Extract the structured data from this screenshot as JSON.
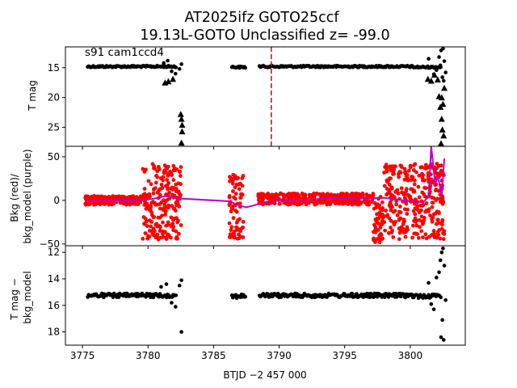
{
  "title_line1": "AT2025ifz  GOTO25ccf",
  "title_line2": "19.13L-GOTO Unclassified z= -99.0",
  "annotation": "s91 cam1ccd4",
  "x_label": "BTJD −2 457 000",
  "colors": {
    "points": "#000000",
    "bkg": "#ff0000",
    "bkg_model": "#c000c0",
    "marker_line": "#dd0000"
  },
  "chart_data": [
    {
      "type": "scatter",
      "panel": "top",
      "ylabel": "T mag",
      "y_inverted": true,
      "xlim": [
        3773.7,
        3804.2
      ],
      "ylim": [
        28.2,
        11.5
      ],
      "yticks": [
        15,
        20,
        25
      ],
      "vline_x": 3789.4,
      "series": [
        {
          "kind": "band",
          "segments": [
            [
              3775.4,
              3782.2,
              14.8
            ],
            [
              3786.4,
              3787.5,
              14.9
            ],
            [
              3788.5,
              3800.2,
              14.8
            ],
            [
              3800.2,
              3802.4,
              14.9
            ]
          ]
        },
        {
          "kind": "points",
          "x": [
            3781.2,
            3781.5,
            3781.8,
            3782.1,
            3782.4,
            3782.55,
            3801.4,
            3801.6,
            3801.8,
            3802.0,
            3802.2,
            3802.35,
            3802.5,
            3802.6,
            3802.7,
            3802.45,
            3802.3,
            3802.55
          ],
          "y": [
            14.2,
            13.8,
            15.6,
            16.0,
            15.2,
            14.4,
            13.5,
            14.9,
            16.1,
            15.4,
            13.2,
            12.1,
            11.8,
            13.9,
            15.8,
            16.6,
            14.6,
            17.2
          ]
        },
        {
          "kind": "triangles",
          "x": [
            3781.3,
            3781.55,
            3781.9,
            3782.5,
            3782.55,
            3782.6,
            3782.6,
            3782.55,
            3801.35,
            3801.6,
            3801.85,
            3802.1,
            3802.2,
            3802.3,
            3802.4,
            3802.45,
            3802.55,
            3802.35,
            3802.5,
            3802.6,
            3802.4
          ],
          "y": [
            17.5,
            17.3,
            16.9,
            22.8,
            23.6,
            24.6,
            25.7,
            27.6,
            16.9,
            17.2,
            16.2,
            17.0,
            19.8,
            21.6,
            23.6,
            25.4,
            26.4,
            27.7,
            21.1,
            18.4,
            20.0
          ]
        }
      ]
    },
    {
      "type": "line",
      "panel": "middle",
      "ylabel": "Bkg (red)/\nbkg_model (purple)",
      "xlim": [
        3773.7,
        3804.2
      ],
      "ylim": [
        -52,
        62
      ],
      "yticks": [
        -50,
        0,
        50
      ],
      "series": [
        {
          "name": "Bkg",
          "color": "red",
          "segments": [
            {
              "x": [
                3775.2,
                3779.6
              ],
              "y": [
                -5,
                5
              ]
            },
            {
              "x": [
                3779.6,
                3782.6
              ],
              "y": [
                -45,
                42
              ]
            },
            {
              "x": [
                3786.2,
                3787.3
              ],
              "y": [
                -45,
                32
              ]
            },
            {
              "x": [
                3788.4,
                3797.2
              ],
              "y": [
                -5,
                8
              ]
            },
            {
              "x": [
                3797.2,
                3797.9
              ],
              "y": [
                -48,
                5
              ]
            },
            {
              "x": [
                3798.0,
                3802.6
              ],
              "y": [
                -45,
                42
              ]
            }
          ]
        },
        {
          "name": "bkg_model",
          "color": "purple",
          "x": [
            3775.2,
            3779.0,
            3780.0,
            3780.8,
            3781.3,
            3781.8,
            3782.6,
            3786.2,
            3787.0,
            3787.5,
            3788.5,
            3790.0,
            3792.0,
            3794.0,
            3796.0,
            3798.0,
            3799.0,
            3800.0,
            3801.0,
            3801.4,
            3801.6,
            3801.9,
            3802.1,
            3802.4,
            3802.6
          ],
          "y": [
            -1,
            0,
            1,
            3,
            5,
            4,
            2,
            -1,
            -6,
            -8,
            -4,
            0,
            1,
            2,
            2,
            3,
            1,
            -1,
            -2,
            5,
            62,
            18,
            28,
            5,
            48
          ]
        }
      ]
    },
    {
      "type": "scatter",
      "panel": "bottom",
      "ylabel": "T mag −\nbkg_model",
      "y_inverted": true,
      "xlim": [
        3773.7,
        3804.2
      ],
      "ylim": [
        19.0,
        11.5
      ],
      "yticks": [
        12,
        14,
        16,
        18
      ],
      "xticks": [
        3775,
        3780,
        3785,
        3790,
        3795,
        3800
      ],
      "series": [
        {
          "kind": "band",
          "segments": [
            [
              3775.4,
              3782.2,
              15.25
            ],
            [
              3786.4,
              3787.5,
              15.3
            ],
            [
              3788.5,
              3800.2,
              15.25
            ],
            [
              3800.2,
              3802.4,
              15.3
            ]
          ]
        },
        {
          "kind": "points",
          "x": [
            3781.0,
            3781.4,
            3781.8,
            3782.1,
            3782.4,
            3782.55,
            3782.55,
            3801.4,
            3801.6,
            3801.8,
            3802.0,
            3802.2,
            3802.3,
            3802.4,
            3802.5,
            3802.6,
            3802.7,
            3802.45,
            3802.55,
            3802.35
          ],
          "y": [
            14.6,
            14.4,
            15.8,
            16.1,
            14.5,
            14.1,
            18.0,
            14.3,
            15.9,
            16.3,
            13.9,
            13.5,
            12.6,
            12.0,
            11.7,
            13.0,
            15.6,
            17.1,
            18.6,
            18.4
          ]
        }
      ]
    }
  ]
}
